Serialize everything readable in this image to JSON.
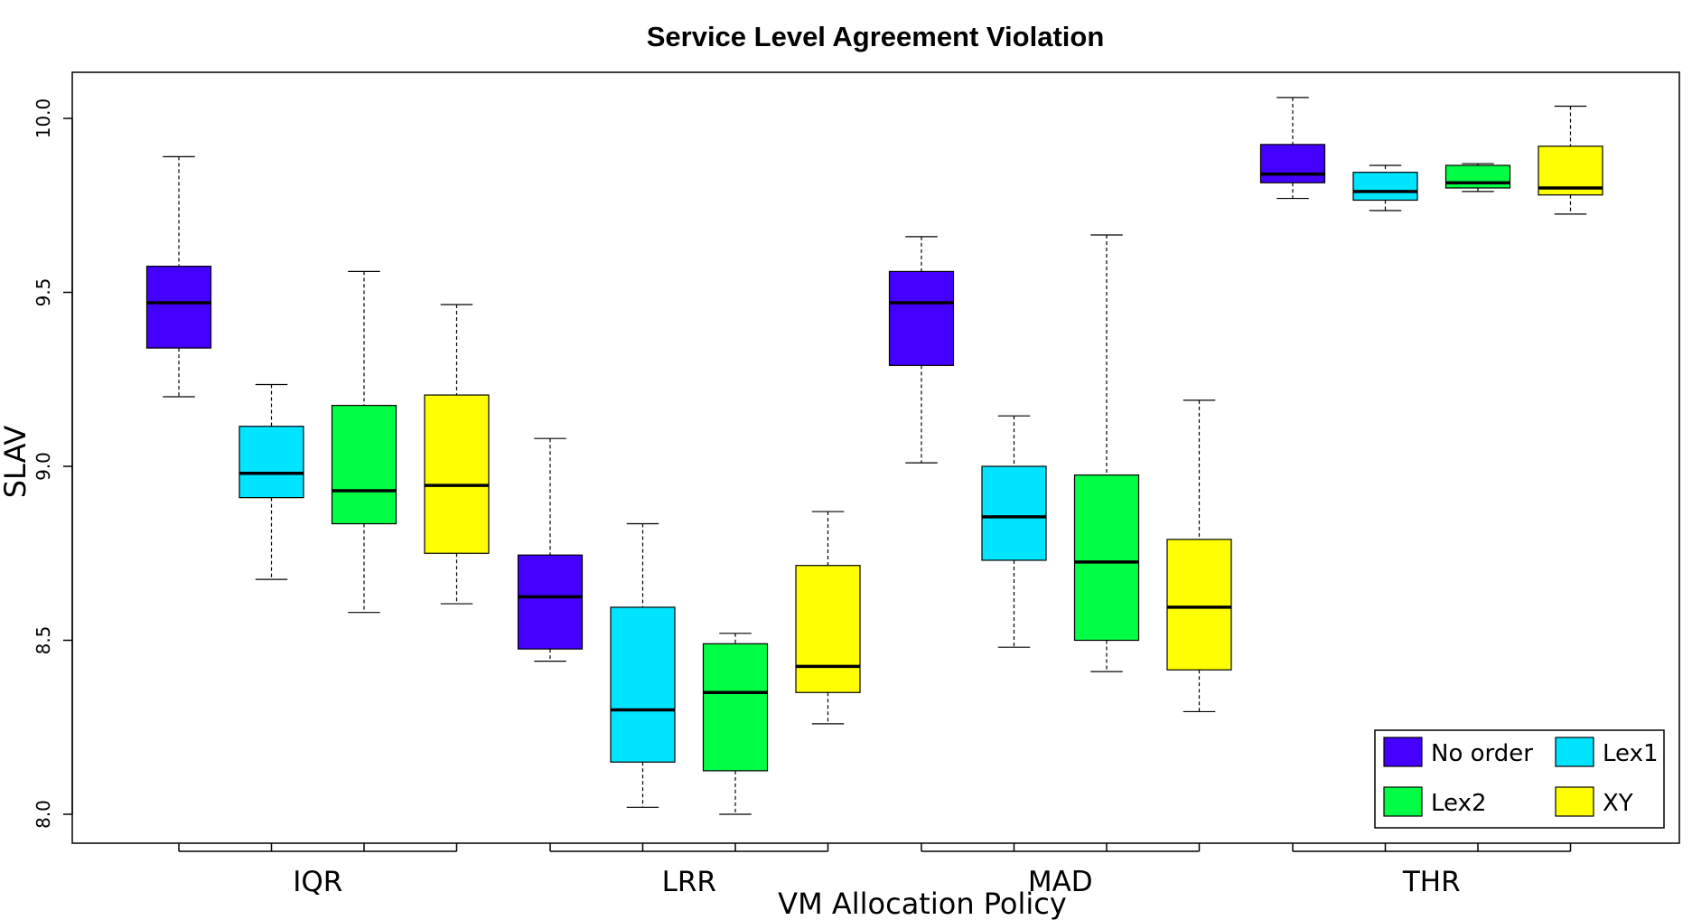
{
  "chart_data": {
    "type": "boxplot",
    "title": "Service Level Agreement Violation",
    "xlabel": "VM Allocation Policy",
    "ylabel": "SLAV",
    "ylim": [
      7.98,
      10.12
    ],
    "yticks": [
      "8.0",
      "8.5",
      "9.0",
      "9.5",
      "10.0"
    ],
    "groups": [
      "IQR",
      "LRR",
      "MAD",
      "THR"
    ],
    "series": [
      {
        "name": "No order",
        "color": "#4400ff",
        "boxes": [
          {
            "min": 9.2,
            "q1": 9.34,
            "median": 9.47,
            "q3": 9.575,
            "max": 9.89
          },
          {
            "min": 8.44,
            "q1": 8.475,
            "median": 8.625,
            "q3": 8.745,
            "max": 9.08
          },
          {
            "min": 9.01,
            "q1": 9.29,
            "median": 9.47,
            "q3": 9.56,
            "max": 9.66
          },
          {
            "min": 9.77,
            "q1": 9.815,
            "median": 9.84,
            "q3": 9.925,
            "max": 10.06
          }
        ]
      },
      {
        "name": "Lex1",
        "color": "#00e5ff",
        "boxes": [
          {
            "min": 8.675,
            "q1": 8.91,
            "median": 8.98,
            "q3": 9.115,
            "max": 9.235
          },
          {
            "min": 8.02,
            "q1": 8.15,
            "median": 8.3,
            "q3": 8.595,
            "max": 8.835
          },
          {
            "min": 8.48,
            "q1": 8.73,
            "median": 8.855,
            "q3": 9.0,
            "max": 9.145
          },
          {
            "min": 9.735,
            "q1": 9.765,
            "median": 9.79,
            "q3": 9.845,
            "max": 9.865
          }
        ]
      },
      {
        "name": "Lex2",
        "color": "#00ff44",
        "boxes": [
          {
            "min": 8.58,
            "q1": 8.835,
            "median": 8.93,
            "q3": 9.175,
            "max": 9.56
          },
          {
            "min": 8.0,
            "q1": 8.125,
            "median": 8.35,
            "q3": 8.49,
            "max": 8.52
          },
          {
            "min": 8.41,
            "q1": 8.5,
            "median": 8.725,
            "q3": 8.975,
            "max": 9.665
          },
          {
            "min": 9.79,
            "q1": 9.8,
            "median": 9.815,
            "q3": 9.865,
            "max": 9.87
          }
        ]
      },
      {
        "name": "XY",
        "color": "#ffff00",
        "boxes": [
          {
            "min": 8.605,
            "q1": 8.75,
            "median": 8.945,
            "q3": 9.205,
            "max": 9.465
          },
          {
            "min": 8.26,
            "q1": 8.35,
            "median": 8.425,
            "q3": 8.715,
            "max": 8.87
          },
          {
            "min": 8.295,
            "q1": 8.415,
            "median": 8.595,
            "q3": 8.79,
            "max": 9.19
          },
          {
            "min": 9.725,
            "q1": 9.78,
            "median": 9.8,
            "q3": 9.92,
            "max": 10.035
          }
        ]
      }
    ],
    "legend_position": "bottom-right",
    "grid": false
  }
}
